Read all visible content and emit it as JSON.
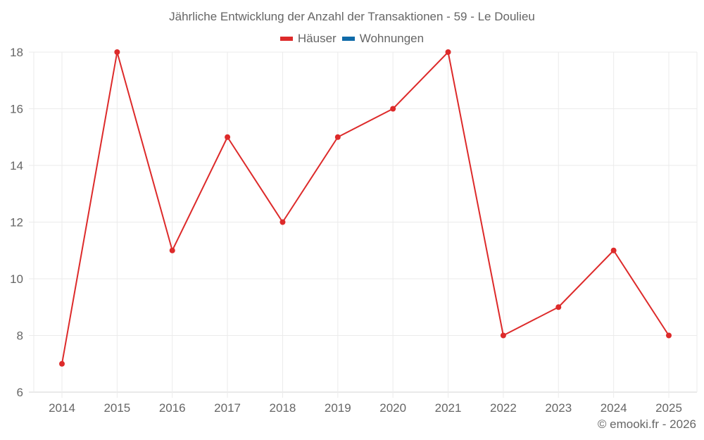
{
  "chart_data": {
    "type": "line",
    "title": "Jährliche Entwicklung der Anzahl der Transaktionen - 59 - Le Doulieu",
    "categories": [
      "2014",
      "2015",
      "2016",
      "2017",
      "2018",
      "2019",
      "2020",
      "2021",
      "2022",
      "2023",
      "2024",
      "2025"
    ],
    "series": [
      {
        "name": "Häuser",
        "color": "#dd2a2a",
        "values": [
          7,
          18,
          11,
          15,
          12,
          15,
          16,
          18,
          8,
          9,
          11,
          8
        ]
      },
      {
        "name": "Wohnungen",
        "color": "#0f6aa8",
        "values": []
      }
    ],
    "xlabel": "",
    "ylabel": "",
    "ylim": [
      6,
      18
    ],
    "yticks": [
      6,
      8,
      10,
      12,
      14,
      16,
      18
    ],
    "grid": true,
    "legend_position": "top"
  },
  "credit": "© emooki.fr - 2026"
}
